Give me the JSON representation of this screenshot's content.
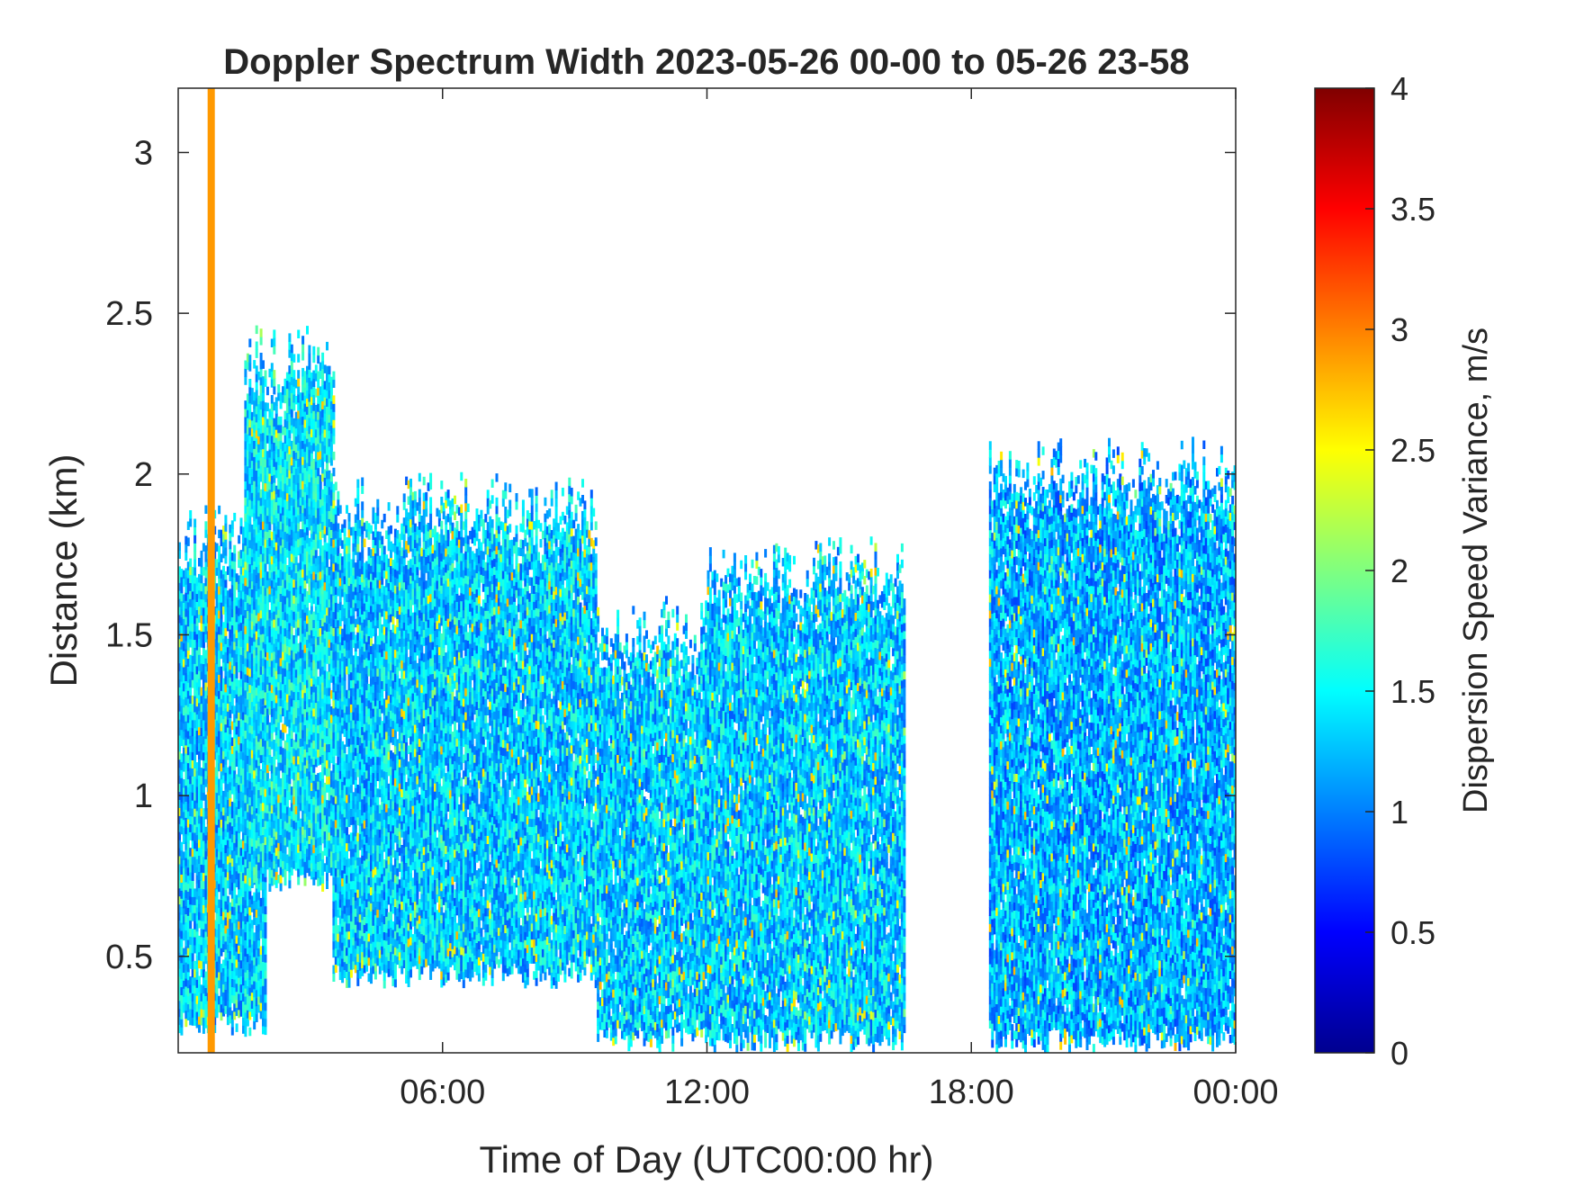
{
  "chart_data": {
    "type": "heatmap",
    "title": "Doppler Spectrum Width 2023-05-26 00-00 to 05-26 23-58",
    "xlabel": "Time of Day (UTC00:00 hr)",
    "ylabel": "Distance (km)",
    "colorbar_label": "Dispersion Speed Variance, m/s",
    "xlim": [
      0,
      24
    ],
    "ylim": [
      0.2,
      3.2
    ],
    "clim": [
      0,
      4
    ],
    "x_ticks": [
      {
        "value": 6,
        "label": "06:00"
      },
      {
        "value": 12,
        "label": "12:00"
      },
      {
        "value": 18,
        "label": "18:00"
      },
      {
        "value": 24,
        "label": "00:00"
      }
    ],
    "y_ticks": [
      {
        "value": 0.5,
        "label": "0.5"
      },
      {
        "value": 1,
        "label": "1"
      },
      {
        "value": 1.5,
        "label": "1.5"
      },
      {
        "value": 2,
        "label": "2"
      },
      {
        "value": 2.5,
        "label": "2.5"
      },
      {
        "value": 3,
        "label": "3"
      }
    ],
    "colorbar_ticks": [
      {
        "value": 0,
        "label": "0"
      },
      {
        "value": 0.5,
        "label": "0.5"
      },
      {
        "value": 1,
        "label": "1"
      },
      {
        "value": 1.5,
        "label": "1.5"
      },
      {
        "value": 2,
        "label": "2"
      },
      {
        "value": 2.5,
        "label": "2.5"
      },
      {
        "value": 3,
        "label": "3"
      },
      {
        "value": 3.5,
        "label": "3.5"
      },
      {
        "value": 4,
        "label": "4"
      }
    ],
    "colormap": "jet",
    "grid": false,
    "echo_regions": [
      {
        "t_start": 0.0,
        "t_end": 2.0,
        "base_km": 0.25,
        "top_km": 1.9,
        "typical_width": 1.3
      },
      {
        "t_start": 1.5,
        "t_end": 3.5,
        "base_km": 0.7,
        "top_km": 2.45,
        "typical_width": 1.4
      },
      {
        "t_start": 3.5,
        "t_end": 9.5,
        "base_km": 0.4,
        "top_km": 2.0,
        "typical_width": 1.3
      },
      {
        "t_start": 9.5,
        "t_end": 12.0,
        "base_km": 0.2,
        "top_km": 1.6,
        "typical_width": 1.3
      },
      {
        "t_start": 12.0,
        "t_end": 16.5,
        "base_km": 0.2,
        "top_km": 1.8,
        "typical_width": 1.3
      },
      {
        "t_start": 18.4,
        "t_end": 24.0,
        "base_km": 0.2,
        "top_km": 2.1,
        "typical_width": 1.2
      }
    ],
    "streaks": [
      {
        "t": 0.75,
        "bottom_km": 0.2,
        "top_km": 3.2,
        "value": 2.9
      }
    ]
  },
  "colors": {
    "axis": "#262626",
    "background": "#ffffff"
  }
}
